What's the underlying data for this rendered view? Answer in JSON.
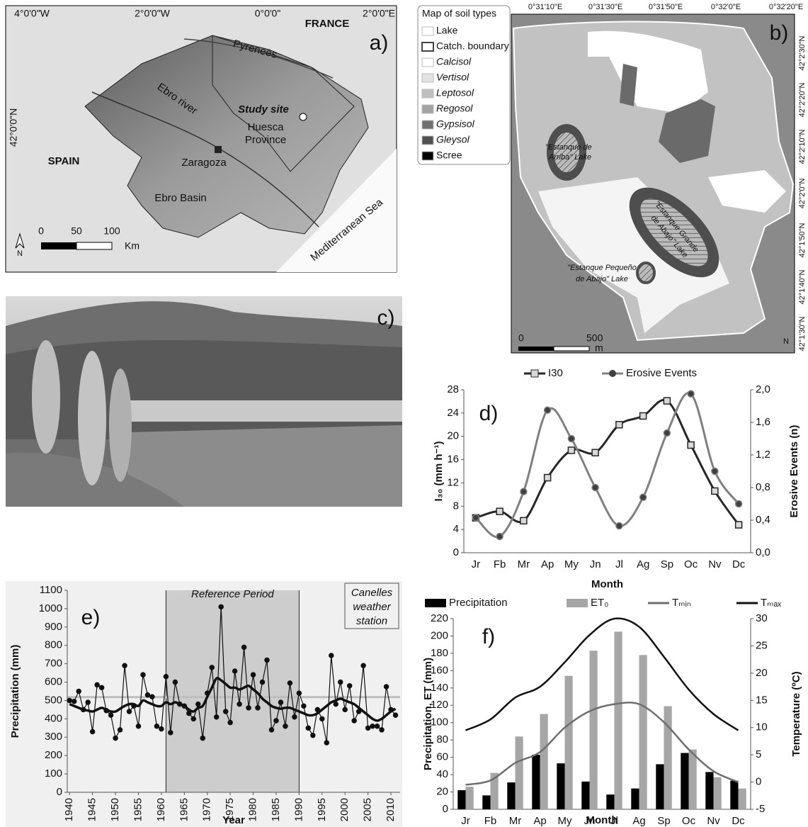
{
  "panels": {
    "a": {
      "label": "a)",
      "lon": [
        "4°0'0\"W",
        "2°0'0\"W",
        "0°0'0\"",
        "2°0'0\"E"
      ],
      "lat": "42°0'0\"N",
      "france": "FRANCE",
      "spain": "SPAIN",
      "pyrenees": "Pyrenees",
      "river": "Ebro river",
      "site": "Study site",
      "province": [
        "Huesca",
        "Province"
      ],
      "city": "Zaragoza",
      "basin": "Ebro Basin",
      "sea": "Mediterranean Sea",
      "scale": [
        "0",
        "50",
        "100",
        "Km"
      ],
      "north": "N"
    },
    "b": {
      "label": "b)",
      "legend_title": "Map of soil types",
      "legend": [
        {
          "name": "Lake",
          "color": "#ffffff"
        },
        {
          "name": "Catch. boundary",
          "color": "#ffffff"
        },
        {
          "name": "Calcisol",
          "color": "#ffffff"
        },
        {
          "name": "Vertisol",
          "color": "#e3e3e3"
        },
        {
          "name": "Leptosol",
          "color": "#bfbfbf"
        },
        {
          "name": "Regosol",
          "color": "#a3a3a3"
        },
        {
          "name": "Gypsisol",
          "color": "#707070"
        },
        {
          "name": "Gleysol",
          "color": "#505050"
        },
        {
          "name": "Scree",
          "color": "#000000"
        }
      ],
      "lon": [
        "0°31'10\"E",
        "0°31'30\"E",
        "0°31'50\"E",
        "0°32'0\"E",
        "0°32'20\"E"
      ],
      "lat": [
        "42°2'30\"N",
        "42°2'20\"N",
        "42°2'10\"N",
        "42°2'0\"N",
        "42°1'50\"N",
        "42°1'40\"N",
        "42°1'30\"N"
      ],
      "lake1": [
        "\"Estanque de",
        "Arriba\" Lake"
      ],
      "lake2": [
        "\"Estanque Grande",
        "de Abajo\" Lake"
      ],
      "lake3": [
        "\"Estanque Pequeño",
        "de Abajo\" Lake"
      ],
      "scale": [
        "0",
        "500",
        "m"
      ],
      "north": "N"
    },
    "c": {
      "label": "c)"
    }
  },
  "chart_data": [
    {
      "type": "line",
      "label": "d)",
      "categories": [
        "Jr",
        "Fb",
        "Mr",
        "Ap",
        "My",
        "Jn",
        "Jl",
        "Ag",
        "Sp",
        "Oc",
        "Nv",
        "Dc"
      ],
      "series": [
        {
          "name": "I30",
          "color": "#262626",
          "marker": "square",
          "marker_color": "#d9d9d9",
          "smooth": true,
          "values": [
            6,
            7.1,
            5.5,
            12.9,
            17.6,
            17.2,
            22,
            23.5,
            26.1,
            18.5,
            10.6,
            4.8
          ]
        },
        {
          "name": "Erosive Events",
          "color": "#808080",
          "marker": "circle",
          "marker_color": "#404040",
          "smooth": true,
          "axis": "y2",
          "values": [
            0.43,
            0.2,
            0.75,
            1.75,
            1.4,
            0.8,
            0.33,
            0.68,
            1.47,
            1.95,
            1.0,
            0.6
          ]
        }
      ],
      "ylim": [
        0,
        28
      ],
      "yticks": [
        0,
        4,
        8,
        12,
        16,
        20,
        24,
        28
      ],
      "y2lim": [
        0,
        2
      ],
      "y2ticks": [
        {
          "value": 0,
          "label": "0,0"
        },
        {
          "value": 0.4,
          "label": "0,4"
        },
        {
          "value": 0.8,
          "label": "0,8"
        },
        {
          "value": 1.2,
          "label": "1,2"
        },
        {
          "value": 1.6,
          "label": "1,6"
        },
        {
          "value": 2,
          "label": "2,0"
        }
      ],
      "x_label": "Month",
      "y_label": "I₃₀ (mm h⁻¹)",
      "y2_label": "Erosive Events (n)"
    },
    {
      "type": "line",
      "label": "e)",
      "x": [
        1940,
        1941,
        1942,
        1943,
        1944,
        1945,
        1946,
        1947,
        1948,
        1949,
        1950,
        1951,
        1952,
        1953,
        1954,
        1955,
        1956,
        1957,
        1958,
        1959,
        1960,
        1961,
        1962,
        1963,
        1964,
        1965,
        1966,
        1967,
        1968,
        1969,
        1970,
        1971,
        1972,
        1973,
        1974,
        1975,
        1976,
        1977,
        1978,
        1979,
        1980,
        1981,
        1982,
        1983,
        1984,
        1985,
        1986,
        1987,
        1988,
        1989,
        1990,
        1991,
        1992,
        1993,
        1994,
        1995,
        1996,
        1997,
        1998,
        1999,
        2000,
        2001,
        2002,
        2003,
        2004,
        2005,
        2006,
        2007,
        2008,
        2009,
        2010,
        2011
      ],
      "series": [
        {
          "color": "#111111",
          "marker": "circle",
          "marker_color": "#111111",
          "values": [
            500,
            495,
            550,
            450,
            490,
            330,
            585,
            570,
            445,
            420,
            295,
            340,
            690,
            440,
            470,
            360,
            640,
            530,
            520,
            360,
            345,
            630,
            325,
            600,
            480,
            470,
            430,
            400,
            480,
            295,
            540,
            680,
            410,
            1010,
            440,
            380,
            660,
            480,
            790,
            460,
            640,
            460,
            600,
            720,
            340,
            390,
            490,
            360,
            595,
            410,
            540,
            470,
            350,
            310,
            450,
            400,
            270,
            745,
            480,
            600,
            450,
            580,
            390,
            440,
            690,
            350,
            360,
            360,
            340,
            575,
            450,
            420
          ]
        },
        {
          "color": "#111111",
          "smooth": true,
          "width": 3.5,
          "values": [
            480,
            470,
            460,
            450,
            445,
            440,
            450,
            460,
            450,
            440,
            440,
            455,
            470,
            480,
            480,
            470,
            500,
            490,
            480,
            470,
            470,
            490,
            480,
            490,
            480,
            470,
            450,
            440,
            460,
            470,
            520,
            570,
            620,
            610,
            590,
            570,
            570,
            560,
            570,
            580,
            560,
            540,
            510,
            490,
            470,
            460,
            455,
            460,
            460,
            450,
            440,
            430,
            420,
            420,
            430,
            450,
            470,
            490,
            500,
            510,
            500,
            490,
            480,
            460,
            440,
            420,
            400,
            390,
            400,
            420,
            440,
            455
          ]
        }
      ],
      "hline": 518,
      "hline_color": "#bdbdbd",
      "shade": {
        "x": [
          1961,
          1990
        ],
        "label": "Reference Period",
        "color": "#cdcdcd"
      },
      "note": [
        "Canelles",
        "weather",
        "station"
      ],
      "xlim": [
        1939.5,
        2012
      ],
      "xticks": [
        1940,
        1945,
        1950,
        1955,
        1960,
        1965,
        1970,
        1975,
        1980,
        1985,
        1990,
        1995,
        2000,
        2005,
        2010
      ],
      "ylim": [
        0,
        1100
      ],
      "yticks": [
        0,
        100,
        200,
        300,
        400,
        500,
        600,
        700,
        800,
        900,
        1000,
        1100
      ],
      "x_label": "Year",
      "y_label": "Precipitation (mm)"
    },
    {
      "type": "bar",
      "label": "f)",
      "categories": [
        "Jr",
        "Fb",
        "Mr",
        "Ap",
        "My",
        "Jn",
        "Jl",
        "Ag",
        "Sp",
        "Oc",
        "Nv",
        "Dc"
      ],
      "series": [
        {
          "name": "Precipitation",
          "color": "#000000",
          "values": [
            22,
            16,
            31,
            63,
            53,
            32,
            17,
            24,
            52,
            65,
            43,
            33
          ]
        },
        {
          "name": "ET₀",
          "color": "#a6a6a6",
          "values": [
            26,
            42,
            84,
            110,
            154,
            183,
            205,
            178,
            119,
            69,
            37,
            24
          ]
        },
        {
          "name": "Tₘᵢₙ",
          "type": "line",
          "color": "#6e6e6e",
          "smooth": true,
          "axis": "y2",
          "values": [
            -0.5,
            0.3,
            3.5,
            5.5,
            10,
            13,
            14.3,
            14.3,
            11,
            6,
            2,
            0
          ]
        },
        {
          "name": "Tₘₐₓ",
          "type": "line",
          "color": "#111111",
          "smooth": true,
          "axis": "y2",
          "values": [
            9.5,
            11.5,
            15.5,
            17.5,
            22,
            27,
            30,
            28.5,
            23,
            17,
            12.5,
            9.5
          ]
        }
      ],
      "ylim": [
        0,
        220
      ],
      "yticks": [
        0,
        20,
        40,
        60,
        80,
        100,
        120,
        140,
        160,
        180,
        200,
        220
      ],
      "y2lim": [
        -5,
        30
      ],
      "y2ticks": [
        -5,
        0,
        5,
        10,
        15,
        20,
        25,
        30
      ],
      "x_label": "Month",
      "y_label": "Precipitation, ET (mm)",
      "y2_label": "Temperature (ºC)"
    }
  ]
}
